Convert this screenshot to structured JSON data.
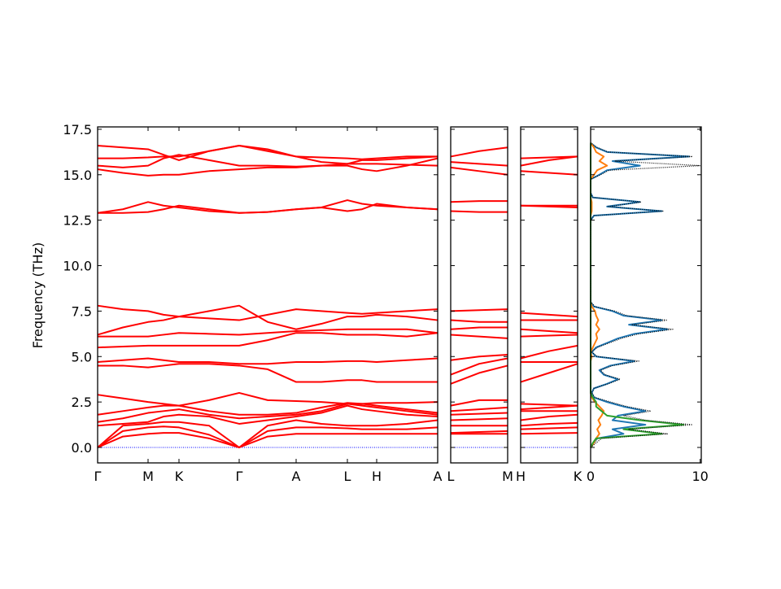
{
  "chart_data": [
    {
      "type": "line",
      "ylabel": "Frequency (THz)",
      "color": "#ff0000",
      "hline": {
        "value": 0,
        "color": "#0000ff"
      },
      "ylim": [
        -0.85,
        17.63
      ],
      "yticks": [
        {
          "value": 0,
          "label": "0.0"
        },
        2.5,
        {
          "value": 5,
          "label": "5.0"
        },
        7.5,
        {
          "value": 10,
          "label": "10.0"
        },
        12.5,
        {
          "value": 15,
          "label": "15.0"
        },
        17.5
      ],
      "xlim": [
        0,
        418
      ],
      "xticks": [
        {
          "value": 0,
          "label": "Γ"
        },
        {
          "value": 62,
          "label": "M"
        },
        {
          "value": 100,
          "label": "K"
        },
        {
          "value": 174,
          "label": "Γ"
        },
        {
          "value": 244,
          "label": "A"
        },
        {
          "value": 307,
          "label": "L"
        },
        {
          "value": 343,
          "label": "H"
        },
        {
          "value": 418,
          "label": "A"
        }
      ],
      "x": [
        0,
        31,
        62,
        81,
        100,
        137,
        174,
        209,
        244,
        275,
        307,
        325,
        343,
        380,
        418
      ],
      "series": [
        {
          "values": [
            0,
            0.6,
            0.75,
            0.8,
            0.8,
            0.5,
            0,
            0.6,
            0.75,
            0.75,
            0.75,
            0.75,
            0.75,
            0.75,
            0.75
          ]
        },
        {
          "values": [
            0,
            0.9,
            1.1,
            1.15,
            1.1,
            0.7,
            0,
            0.9,
            1.1,
            1.1,
            1.05,
            1.0,
            1.0,
            1.0,
            1.1
          ]
        },
        {
          "values": [
            0,
            1.2,
            1.3,
            1.4,
            1.4,
            1.2,
            0,
            1.2,
            1.5,
            1.3,
            1.2,
            1.2,
            1.2,
            1.3,
            1.5
          ]
        },
        {
          "values": [
            1.2,
            1.3,
            1.4,
            1.7,
            1.8,
            1.7,
            1.3,
            1.5,
            1.7,
            1.9,
            2.3,
            2.1,
            2.0,
            1.8,
            1.7
          ]
        },
        {
          "values": [
            1.4,
            1.6,
            1.9,
            2.0,
            2.1,
            1.8,
            1.6,
            1.7,
            1.8,
            2.0,
            2.4,
            2.3,
            2.2,
            2.0,
            1.8
          ]
        },
        {
          "values": [
            1.8,
            2.0,
            2.2,
            2.3,
            2.3,
            2.0,
            1.8,
            1.8,
            1.9,
            2.2,
            2.45,
            2.4,
            2.3,
            2.1,
            1.9
          ]
        },
        {
          "values": [
            2.9,
            2.7,
            2.5,
            2.4,
            2.3,
            2.6,
            3.0,
            2.6,
            2.55,
            2.5,
            2.4,
            2.4,
            2.45,
            2.45,
            2.5
          ]
        },
        {
          "values": [
            4.5,
            4.5,
            4.4,
            4.5,
            4.6,
            4.6,
            4.5,
            4.3,
            3.6,
            3.6,
            3.7,
            3.7,
            3.6,
            3.6,
            3.6
          ]
        },
        {
          "values": [
            4.7,
            4.8,
            4.9,
            4.8,
            4.7,
            4.7,
            4.6,
            4.6,
            4.7,
            4.7,
            4.75,
            4.75,
            4.7,
            4.8,
            4.9
          ]
        },
        {
          "values": [
            5.5,
            5.55,
            5.6,
            5.6,
            5.6,
            5.6,
            5.6,
            5.9,
            6.3,
            6.3,
            6.2,
            6.2,
            6.2,
            6.1,
            6.3
          ]
        },
        {
          "values": [
            6.1,
            6.1,
            6.1,
            6.2,
            6.3,
            6.25,
            6.2,
            6.3,
            6.4,
            6.45,
            6.5,
            6.5,
            6.5,
            6.5,
            6.3
          ]
        },
        {
          "values": [
            6.2,
            6.6,
            6.9,
            7.0,
            7.2,
            7.5,
            7.8,
            6.9,
            6.5,
            6.8,
            7.2,
            7.2,
            7.3,
            7.2,
            7.0
          ]
        },
        {
          "values": [
            7.8,
            7.6,
            7.5,
            7.3,
            7.2,
            7.1,
            7.0,
            7.3,
            7.6,
            7.5,
            7.4,
            7.35,
            7.4,
            7.5,
            7.6
          ]
        },
        {
          "values": [
            12.9,
            13.1,
            13.5,
            13.3,
            13.2,
            13.0,
            12.9,
            12.95,
            13.1,
            13.2,
            13.6,
            13.4,
            13.3,
            13.2,
            13.1
          ]
        },
        {
          "values": [
            12.9,
            12.9,
            12.95,
            13.1,
            13.3,
            13.1,
            12.9,
            12.95,
            13.1,
            13.2,
            13.0,
            13.1,
            13.4,
            13.2,
            13.1
          ]
        },
        {
          "values": [
            15.3,
            15.1,
            14.95,
            15.0,
            15.0,
            15.2,
            15.3,
            15.4,
            15.4,
            15.5,
            15.5,
            15.3,
            15.2,
            15.5,
            15.9
          ]
        },
        {
          "values": [
            15.5,
            15.4,
            15.5,
            15.9,
            16.1,
            15.8,
            15.5,
            15.5,
            15.45,
            15.5,
            15.6,
            15.6,
            15.6,
            15.55,
            15.5
          ]
        },
        {
          "values": [
            15.9,
            15.9,
            15.95,
            16.0,
            16.0,
            16.3,
            16.6,
            16.3,
            16.0,
            15.95,
            15.9,
            15.85,
            15.9,
            16.0,
            16.0
          ]
        },
        {
          "values": [
            16.6,
            16.5,
            16.4,
            16.1,
            15.8,
            16.3,
            16.6,
            16.4,
            16.0,
            15.7,
            15.6,
            15.8,
            15.8,
            15.9,
            16.0
          ]
        }
      ]
    },
    {
      "type": "line",
      "color": "#ff0000",
      "hline": {
        "value": 0,
        "color": "#0000ff"
      },
      "xlim": [
        0,
        70
      ],
      "xticks": [
        {
          "value": 0,
          "label": "L"
        },
        {
          "value": 70,
          "label": "M"
        }
      ],
      "x": [
        0,
        35,
        70
      ],
      "series": [
        {
          "values": [
            0.75,
            0.75,
            0.75
          ]
        },
        {
          "values": [
            0.8,
            0.85,
            0.9
          ]
        },
        {
          "values": [
            1.2,
            1.2,
            1.2
          ]
        },
        {
          "values": [
            1.5,
            1.55,
            1.6
          ]
        },
        {
          "values": [
            1.8,
            1.85,
            1.9
          ]
        },
        {
          "values": [
            2.0,
            2.1,
            2.2
          ]
        },
        {
          "values": [
            2.3,
            2.6,
            2.6
          ]
        },
        {
          "values": [
            3.5,
            4.1,
            4.5
          ]
        },
        {
          "values": [
            4.0,
            4.6,
            4.9
          ]
        },
        {
          "values": [
            4.8,
            5.0,
            5.1
          ]
        },
        {
          "values": [
            6.2,
            6.1,
            6.0
          ]
        },
        {
          "values": [
            6.5,
            6.6,
            6.6
          ]
        },
        {
          "values": [
            7.0,
            6.9,
            6.9
          ]
        },
        {
          "values": [
            7.5,
            7.55,
            7.6
          ]
        },
        {
          "values": [
            13.0,
            12.95,
            12.95
          ]
        },
        {
          "values": [
            13.5,
            13.55,
            13.55
          ]
        },
        {
          "values": [
            15.4,
            15.2,
            15.0
          ]
        },
        {
          "values": [
            15.7,
            15.6,
            15.5
          ]
        },
        {
          "values": [
            16.0,
            16.3,
            16.5
          ]
        }
      ]
    },
    {
      "type": "line",
      "color": "#ff0000",
      "hline": {
        "value": 0,
        "color": "#0000ff"
      },
      "xlim": [
        0,
        70
      ],
      "xticks": [
        {
          "value": 0,
          "label": "H"
        },
        {
          "value": 70,
          "label": "K"
        }
      ],
      "x": [
        0,
        35,
        70
      ],
      "series": [
        {
          "values": [
            0.75,
            0.78,
            0.8
          ]
        },
        {
          "values": [
            1.0,
            1.05,
            1.1
          ]
        },
        {
          "values": [
            1.2,
            1.3,
            1.35
          ]
        },
        {
          "values": [
            1.5,
            1.7,
            1.8
          ]
        },
        {
          "values": [
            2.0,
            2.0,
            2.0
          ]
        },
        {
          "values": [
            2.1,
            2.2,
            2.3
          ]
        },
        {
          "values": [
            2.4,
            2.35,
            2.3
          ]
        },
        {
          "values": [
            3.6,
            4.1,
            4.6
          ]
        },
        {
          "values": [
            4.7,
            4.7,
            4.7
          ]
        },
        {
          "values": [
            4.9,
            5.3,
            5.6
          ]
        },
        {
          "values": [
            6.1,
            6.15,
            6.2
          ]
        },
        {
          "values": [
            6.5,
            6.4,
            6.3
          ]
        },
        {
          "values": [
            7.0,
            7.0,
            7.0
          ]
        },
        {
          "values": [
            7.4,
            7.3,
            7.2
          ]
        },
        {
          "values": [
            13.3,
            13.25,
            13.2
          ]
        },
        {
          "values": [
            13.3,
            13.3,
            13.3
          ]
        },
        {
          "values": [
            15.2,
            15.1,
            15.0
          ]
        },
        {
          "values": [
            15.5,
            15.8,
            16.0
          ]
        },
        {
          "values": [
            15.9,
            15.95,
            16.0
          ]
        }
      ]
    },
    {
      "type": "dos",
      "xlim": [
        0,
        10.1
      ],
      "xticks": [
        0,
        10
      ],
      "y": [
        0,
        0.25,
        0.5,
        0.75,
        1,
        1.25,
        1.5,
        1.75,
        2,
        2.25,
        2.5,
        2.75,
        3,
        3.25,
        3.5,
        3.75,
        4,
        4.25,
        4.5,
        4.75,
        5,
        5.25,
        5.5,
        5.75,
        6,
        6.25,
        6.5,
        6.75,
        7,
        7.25,
        7.5,
        7.75,
        8,
        8.25,
        8.5,
        8.75,
        9,
        9.25,
        9.5,
        9.75,
        10,
        10.25,
        10.5,
        10.75,
        11,
        11.25,
        11.5,
        11.75,
        12,
        12.25,
        12.5,
        12.75,
        13,
        13.25,
        13.5,
        13.75,
        14,
        14.25,
        14.5,
        14.75,
        15,
        15.25,
        15.5,
        15.75,
        16,
        16.25,
        16.5,
        16.75
      ],
      "series": [
        {
          "color": "#1f77b4",
          "values": [
            0,
            0.3,
            0.6,
            3.0,
            2.0,
            5.0,
            2.0,
            2.5,
            5.0,
            3.0,
            1.5,
            0.3,
            0.1,
            0.3,
            1.5,
            2.5,
            1.2,
            0.8,
            1.8,
            4.0,
            0.5,
            0.1,
            0.5,
            1.5,
            2.5,
            4.0,
            7.0,
            3.5,
            6.5,
            3.0,
            2.0,
            0.3,
            0,
            0,
            0,
            0,
            0,
            0,
            0,
            0,
            0,
            0,
            0,
            0,
            0,
            0,
            0,
            0,
            0,
            0,
            0,
            0.3,
            6.5,
            1.5,
            4.5,
            0.2,
            0,
            0,
            0,
            0,
            0.8,
            1.5,
            4.5,
            2.0,
            9.0,
            1.5,
            0.5,
            0
          ]
        },
        {
          "color": "#ff7f0e",
          "values": [
            0,
            0.3,
            0.5,
            0.8,
            0.6,
            0.9,
            0.7,
            1.0,
            1.2,
            0.8,
            0.4,
            0.1,
            0,
            0,
            0,
            0,
            0,
            0,
            0,
            0,
            0.1,
            0,
            0.2,
            0.4,
            0.6,
            0.5,
            0.8,
            0.5,
            0.7,
            0.5,
            0.4,
            0.1,
            0,
            0,
            0,
            0,
            0,
            0,
            0,
            0,
            0,
            0,
            0,
            0,
            0,
            0,
            0,
            0,
            0,
            0,
            0,
            0,
            0.1,
            0.1,
            0.1,
            0,
            0,
            0,
            0,
            0,
            0.3,
            0.6,
            1.5,
            0.8,
            1.2,
            0.5,
            0.3,
            0
          ]
        },
        {
          "color": "#2ca02c",
          "values": [
            0,
            0.2,
            0.5,
            6.5,
            3.0,
            8.5,
            4.5,
            1.5,
            1.0,
            0.5,
            0.5,
            0.2,
            0,
            0,
            0,
            0,
            0,
            0,
            0,
            0,
            0,
            0,
            0,
            0,
            0,
            0,
            0,
            0,
            0,
            0,
            0,
            0,
            0,
            0,
            0,
            0,
            0,
            0,
            0,
            0,
            0,
            0,
            0,
            0,
            0,
            0,
            0,
            0,
            0,
            0,
            0,
            0,
            0,
            0,
            0,
            0,
            0,
            0,
            0,
            0,
            0,
            0,
            0,
            0,
            0,
            0,
            0,
            0
          ]
        },
        {
          "color": "#000000",
          "dashed": true,
          "values": [
            0,
            0.5,
            1.0,
            7.0,
            3.5,
            9.3,
            5.0,
            3.0,
            5.5,
            3.3,
            1.8,
            0.4,
            0.1,
            0.3,
            1.6,
            2.7,
            1.3,
            0.9,
            2.0,
            4.4,
            0.6,
            0.1,
            0.6,
            1.7,
            2.8,
            4.4,
            7.5,
            3.8,
            7.0,
            3.3,
            2.2,
            0.4,
            0,
            0,
            0,
            0,
            0,
            0,
            0,
            0,
            0,
            0,
            0,
            0,
            0,
            0,
            0,
            0,
            0,
            0,
            0,
            0.3,
            6.6,
            1.6,
            4.6,
            0.2,
            0,
            0,
            0,
            0,
            0.9,
            1.7,
            10.0,
            2.2,
            9.3,
            1.6,
            0.6,
            0
          ]
        }
      ]
    }
  ]
}
